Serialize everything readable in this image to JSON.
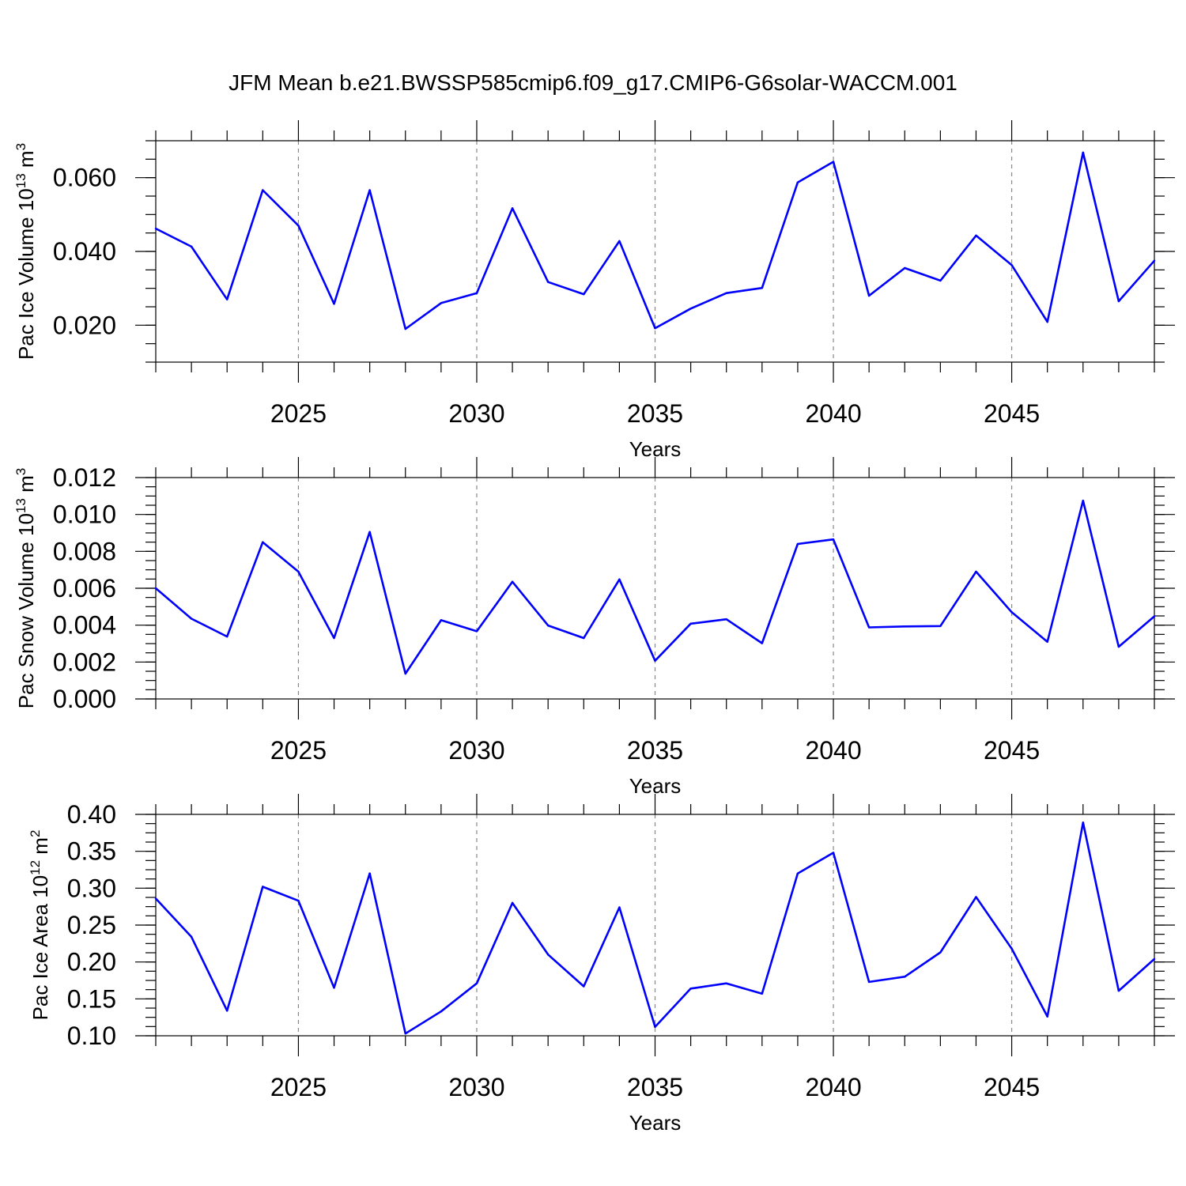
{
  "title": "JFM Mean b.e21.BWSSP585cmip6.f09_g17.CMIP6-G6solar-WACCM.001",
  "colors": {
    "series": "#0000ff",
    "grid": "#888888"
  },
  "chart_data": [
    {
      "type": "line",
      "ylabel_main": "Pac Ice Volume 10",
      "ylabel_exp": "13",
      "ylabel_unit": " m",
      "ylabel_unit_exp": "3",
      "xlabel": "Years",
      "xlim": [
        2021,
        2049
      ],
      "ylim": [
        0.01,
        0.07
      ],
      "yticks": [
        0.02,
        0.04,
        0.06
      ],
      "ytick_labels": [
        "0.020",
        "0.040",
        "0.060"
      ],
      "yminor_step": 0.005,
      "xticks": [
        2025,
        2030,
        2035,
        2040,
        2045
      ],
      "xtick_labels": [
        "2025",
        "2030",
        "2035",
        "2040",
        "2045"
      ],
      "grid": "vertical dashed at major x ticks",
      "x": [
        2021,
        2022,
        2023,
        2024,
        2025,
        2026,
        2027,
        2028,
        2029,
        2030,
        2031,
        2032,
        2033,
        2034,
        2035,
        2036,
        2037,
        2038,
        2039,
        2040,
        2041,
        2042,
        2043,
        2044,
        2045,
        2046,
        2047,
        2048,
        2049
      ],
      "values": [
        0.0462,
        0.0413,
        0.027,
        0.0566,
        0.047,
        0.0258,
        0.0566,
        0.019,
        0.026,
        0.0287,
        0.0517,
        0.0317,
        0.0284,
        0.0428,
        0.0192,
        0.0245,
        0.0287,
        0.0301,
        0.0587,
        0.0643,
        0.028,
        0.0355,
        0.0321,
        0.0443,
        0.0363,
        0.0209,
        0.0668,
        0.0265,
        0.0375
      ]
    },
    {
      "type": "line",
      "ylabel_main": "Pac Snow Volume 10",
      "ylabel_exp": "13",
      "ylabel_unit": " m",
      "ylabel_unit_exp": "3",
      "xlabel": "Years",
      "xlim": [
        2021,
        2049
      ],
      "ylim": [
        0.0,
        0.012
      ],
      "yticks": [
        0.0,
        0.002,
        0.004,
        0.006,
        0.008,
        0.01,
        0.012
      ],
      "ytick_labels": [
        "0.000",
        "0.002",
        "0.004",
        "0.006",
        "0.008",
        "0.010",
        "0.012"
      ],
      "yminor_step": 0.0005,
      "xticks": [
        2025,
        2030,
        2035,
        2040,
        2045
      ],
      "xtick_labels": [
        "2025",
        "2030",
        "2035",
        "2040",
        "2045"
      ],
      "grid": "vertical dashed at major x ticks",
      "x": [
        2021,
        2022,
        2023,
        2024,
        2025,
        2026,
        2027,
        2028,
        2029,
        2030,
        2031,
        2032,
        2033,
        2034,
        2035,
        2036,
        2037,
        2038,
        2039,
        2040,
        2041,
        2042,
        2043,
        2044,
        2045,
        2046,
        2047,
        2048,
        2049
      ],
      "values": [
        0.006,
        0.00435,
        0.00338,
        0.0085,
        0.0069,
        0.0033,
        0.00905,
        0.00137,
        0.00427,
        0.00367,
        0.00635,
        0.00398,
        0.0033,
        0.00648,
        0.00207,
        0.00408,
        0.00432,
        0.00302,
        0.0084,
        0.00865,
        0.00388,
        0.00393,
        0.00395,
        0.0069,
        0.0047,
        0.0031,
        0.01075,
        0.00283,
        0.00448
      ]
    },
    {
      "type": "line",
      "ylabel_main": "Pac Ice Area 10",
      "ylabel_exp": "12",
      "ylabel_unit": " m",
      "ylabel_unit_exp": "2",
      "xlabel": "Years",
      "xlim": [
        2021,
        2049
      ],
      "ylim": [
        0.1,
        0.4
      ],
      "yticks": [
        0.1,
        0.15,
        0.2,
        0.25,
        0.3,
        0.35,
        0.4
      ],
      "ytick_labels": [
        "0.10",
        "0.15",
        "0.20",
        "0.25",
        "0.30",
        "0.35",
        "0.40"
      ],
      "yminor_step": 0.0125,
      "xticks": [
        2025,
        2030,
        2035,
        2040,
        2045
      ],
      "xtick_labels": [
        "2025",
        "2030",
        "2035",
        "2040",
        "2045"
      ],
      "grid": "vertical dashed at major x ticks",
      "x": [
        2021,
        2022,
        2023,
        2024,
        2025,
        2026,
        2027,
        2028,
        2029,
        2030,
        2031,
        2032,
        2033,
        2034,
        2035,
        2036,
        2037,
        2038,
        2039,
        2040,
        2041,
        2042,
        2043,
        2044,
        2045,
        2046,
        2047,
        2048,
        2049
      ],
      "values": [
        0.286,
        0.234,
        0.134,
        0.302,
        0.283,
        0.165,
        0.32,
        0.103,
        0.133,
        0.171,
        0.28,
        0.21,
        0.167,
        0.274,
        0.112,
        0.164,
        0.171,
        0.157,
        0.32,
        0.348,
        0.173,
        0.18,
        0.213,
        0.288,
        0.218,
        0.126,
        0.389,
        0.161,
        0.204
      ]
    }
  ]
}
